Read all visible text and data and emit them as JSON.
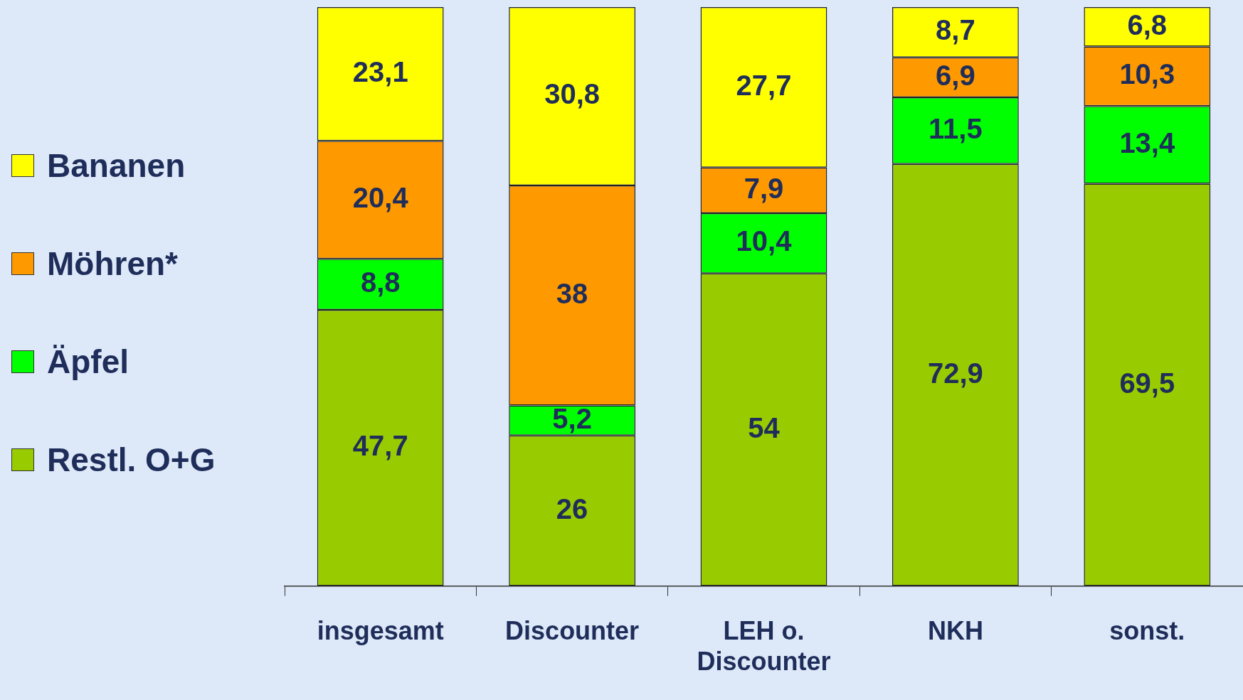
{
  "chart_data": {
    "type": "bar",
    "stacked": true,
    "categories": [
      "insgesamt",
      "Discounter",
      "LEH o. Discounter",
      "NKH",
      "sonst."
    ],
    "series": [
      {
        "name": "Restl. O+G",
        "color": "#99cc00",
        "values": [
          47.7,
          26,
          54,
          72.9,
          69.5
        ],
        "value_labels": [
          "47,7",
          "26",
          "54",
          "72,9",
          "69,5"
        ]
      },
      {
        "name": "Äpfel",
        "color": "#00ff00",
        "values": [
          8.8,
          5.2,
          10.4,
          11.5,
          13.4
        ],
        "value_labels": [
          "8,8",
          "5,2",
          "10,4",
          "11,5",
          "13,4"
        ]
      },
      {
        "name": "Möhren*",
        "color": "#ff9900",
        "values": [
          20.4,
          38,
          7.9,
          6.9,
          10.3
        ],
        "value_labels": [
          "20,4",
          "38",
          "7,9",
          "6,9",
          "10,3"
        ]
      },
      {
        "name": "Bananen",
        "color": "#ffff00",
        "values": [
          23.1,
          30.8,
          27.7,
          8.7,
          6.8
        ],
        "value_labels": [
          "23,1",
          "30,8",
          "27,7",
          "8,7",
          "6,8"
        ]
      }
    ],
    "ylim": [
      0,
      100
    ],
    "tick_labels": "x",
    "legend": "left",
    "grid": false
  }
}
